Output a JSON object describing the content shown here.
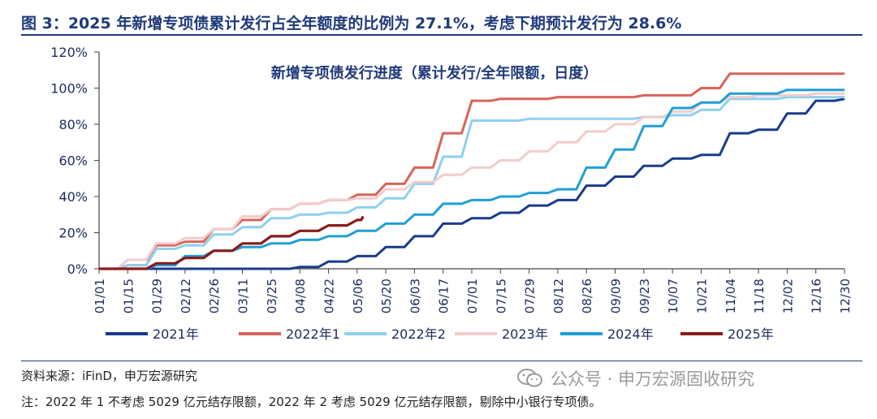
{
  "figure": {
    "title": "图 3：2025 年新增专项债累计发行占全年额度的比例为 27.1%，考虑下期预计发行为 28.6%",
    "source": "资料来源：iFinD，申万宏源研究",
    "note": "注：2022 年 1 不考虑 5029 亿元结存限额，2022 年 2 考虑 5029 亿元结存限额，剔除中小银行专项债。",
    "watermark": "公众号 · 申万宏源固收研究",
    "watermark_icon": "wechat-icon"
  },
  "chart_data": {
    "type": "line",
    "title": "新增专项债发行进度（累计发行/全年限额，日度）",
    "xlabel": "",
    "ylabel": "",
    "x_ticks": [
      "01/01",
      "01/15",
      "01/29",
      "02/12",
      "02/26",
      "03/11",
      "03/25",
      "04/08",
      "04/22",
      "05/06",
      "05/20",
      "06/03",
      "06/17",
      "07/01",
      "07/15",
      "07/29",
      "08/12",
      "08/26",
      "09/09",
      "09/23",
      "10/07",
      "10/21",
      "11/04",
      "11/18",
      "12/02",
      "12/16",
      "12/30"
    ],
    "y_ticks": [
      "0%",
      "20%",
      "40%",
      "60%",
      "80%",
      "100%",
      "120%"
    ],
    "ylim": [
      0,
      120
    ],
    "y_unit": "%",
    "grid": false,
    "legend_position": "bottom",
    "series": [
      {
        "name": "2021年",
        "color": "#1a3a8c",
        "x": [
          "01/01",
          "03/25",
          "04/08",
          "04/22",
          "05/06",
          "05/20",
          "06/03",
          "06/17",
          "07/01",
          "07/15",
          "07/29",
          "08/12",
          "08/26",
          "09/09",
          "09/23",
          "10/07",
          "10/21",
          "11/04",
          "11/18",
          "12/02",
          "12/16",
          "12/30"
        ],
        "y": [
          0,
          0,
          1,
          4,
          7,
          12,
          18,
          25,
          28,
          31,
          35,
          38,
          46,
          51,
          57,
          61,
          63,
          75,
          77,
          86,
          93,
          94
        ]
      },
      {
        "name": "2022年1",
        "color": "#d9635a",
        "x": [
          "01/01",
          "01/15",
          "01/29",
          "02/12",
          "02/26",
          "03/11",
          "03/25",
          "04/08",
          "04/22",
          "05/06",
          "05/20",
          "06/03",
          "06/17",
          "07/01",
          "07/15",
          "07/29",
          "08/12",
          "08/26",
          "09/09",
          "09/23",
          "10/07",
          "10/21",
          "11/04",
          "11/18",
          "12/02",
          "12/16",
          "12/30"
        ],
        "y": [
          0,
          2,
          13,
          15,
          22,
          27,
          33,
          36,
          38,
          41,
          47,
          56,
          75,
          93,
          94,
          94,
          95,
          95,
          95,
          96,
          96,
          100,
          108,
          108,
          108,
          108,
          108
        ]
      },
      {
        "name": "2022年2",
        "color": "#8ed0ee",
        "x": [
          "01/01",
          "01/15",
          "01/29",
          "02/12",
          "02/26",
          "03/11",
          "03/25",
          "04/08",
          "04/22",
          "05/06",
          "05/20",
          "06/03",
          "06/17",
          "07/01",
          "07/15",
          "07/29",
          "08/12",
          "08/26",
          "09/09",
          "09/23",
          "10/07",
          "10/21",
          "11/04",
          "11/18",
          "12/02",
          "12/16",
          "12/30"
        ],
        "y": [
          0,
          2,
          11,
          13,
          19,
          23,
          28,
          30,
          31,
          34,
          39,
          47,
          62,
          82,
          82,
          83,
          83,
          83,
          83,
          84,
          85,
          88,
          94,
          94,
          95,
          95,
          95
        ]
      },
      {
        "name": "2023年",
        "color": "#f2cccc",
        "x": [
          "01/01",
          "01/15",
          "01/29",
          "02/12",
          "02/26",
          "03/11",
          "03/25",
          "04/08",
          "04/22",
          "05/06",
          "05/20",
          "06/03",
          "06/17",
          "07/01",
          "07/15",
          "07/29",
          "08/12",
          "08/26",
          "09/09",
          "09/23",
          "10/07",
          "10/21",
          "11/04",
          "11/18",
          "12/02",
          "12/16",
          "12/30"
        ],
        "y": [
          0,
          5,
          14,
          17,
          22,
          29,
          33,
          36,
          38,
          39,
          44,
          48,
          52,
          56,
          60,
          65,
          70,
          76,
          80,
          84,
          87,
          92,
          95,
          96,
          96,
          97,
          97
        ]
      },
      {
        "name": "2024年",
        "color": "#1f9fd6",
        "x": [
          "01/01",
          "01/15",
          "01/29",
          "02/12",
          "02/26",
          "03/11",
          "03/25",
          "04/08",
          "04/22",
          "05/06",
          "05/20",
          "06/03",
          "06/17",
          "07/01",
          "07/15",
          "07/29",
          "08/12",
          "08/26",
          "09/09",
          "09/23",
          "10/07",
          "10/21",
          "11/04",
          "11/18",
          "12/02",
          "12/16",
          "12/30"
        ],
        "y": [
          0,
          0,
          2,
          7,
          10,
          12,
          14,
          16,
          18,
          21,
          25,
          30,
          36,
          38,
          40,
          42,
          44,
          56,
          66,
          79,
          89,
          92,
          97,
          97,
          99,
          99,
          99
        ]
      },
      {
        "name": "2025年",
        "color": "#8b1a1a",
        "x": [
          "01/01",
          "01/15",
          "01/29",
          "02/12",
          "02/26",
          "03/11",
          "03/25",
          "04/08",
          "04/22",
          "05/06",
          "05/09"
        ],
        "y": [
          0,
          0,
          3,
          6,
          10,
          14,
          18,
          21,
          24,
          27,
          29
        ]
      }
    ]
  }
}
